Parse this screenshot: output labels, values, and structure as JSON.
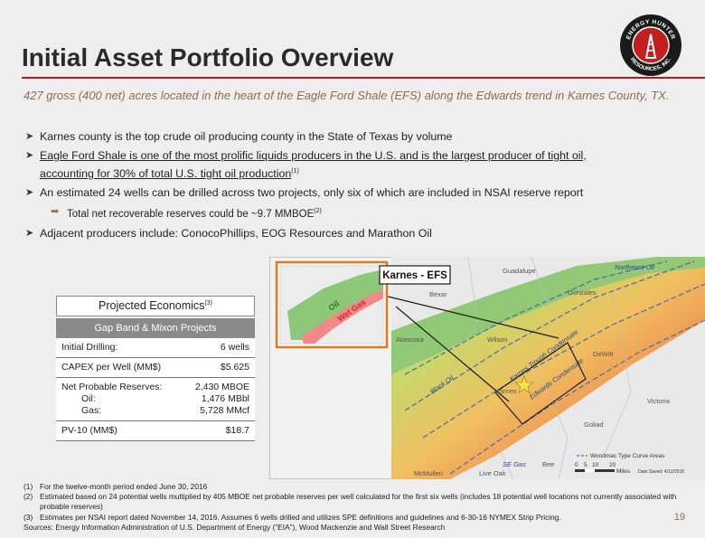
{
  "header": {
    "title": "Initial Asset Portfolio Overview",
    "logo_text_top": "ENERGY HUNTER",
    "logo_text_bottom": "RESOURCES, INC."
  },
  "subtitle": "427 gross (400 net) acres located in the heart of the Eagle Ford Shale (EFS) along the Edwards trend in Karnes County, TX.",
  "bullets": {
    "b1_prefix": "Karnes county is the ",
    "b1_highlight": "top crude oil producing county in the State of Texas by volume",
    "b2_line1": "Eagle Ford Shale is one of the most prolific liquids producers in the U.S. and is the largest producer of tight oil,",
    "b2_line2": "accounting for 30% of total U.S. tight oil production",
    "b2_sup": "(1)",
    "b3": "An estimated 24 wells can be drilled across two projects, only six of which are included in NSAI reserve report",
    "b3_sub": "Total net recoverable reserves could be ~9.7 MMBOE",
    "b3_sub_sup": "(2)",
    "b4": "Adjacent producers include: ConocoPhillips, EOG Resources and Marathon Oil"
  },
  "economics": {
    "title": "Projected Economics",
    "title_sup": "(3)",
    "band": "Gap Band & Mixon Projects",
    "rows": [
      {
        "label": "Initial Drilling:",
        "value": "6 wells"
      },
      {
        "label": "CAPEX per Well (MM$)",
        "value": "$5.625"
      }
    ],
    "reserves": {
      "label": "Net Probable Reserves:",
      "value": "2,430 MBOE",
      "oil_label": "Oil:",
      "oil_value": "1,476 MBbl",
      "gas_label": "Gas:",
      "gas_value": "5,728 MMcf"
    },
    "pv10": {
      "label": "PV-10 (MM$)",
      "value": "$18.7"
    }
  },
  "map": {
    "callout": "Karnes - EFS",
    "labels": {
      "guadalupe": "Guadalupe",
      "gonzales": "Gonzales",
      "bexar": "Bexar",
      "atascosa": "Atascosa",
      "wilson": "Wilson",
      "karnes": "Karnes",
      "dewitt": "DeWitt",
      "victoria": "Victoria",
      "goliad": "Goliad",
      "bee": "Bee",
      "live_oak": "Live Oak",
      "mcmullen": "McMullen",
      "northeast_oil": "Northeast Oil",
      "black_oil": "Black Oil",
      "karnes_trough": "Karnes Trough Condensate",
      "edwards_condensate": "Edwards Condensate",
      "se_gas": "SE Gas",
      "legend": "Woodmac Type Curve Areas",
      "miles": "Miles",
      "scale_0": "0",
      "scale_5": "5",
      "scale_10": "10",
      "scale_20": "20",
      "date_saved": "Date Saved: 4/12/2016",
      "inset_oil": "Oil",
      "inset_gas": "Wet Gas"
    }
  },
  "footnotes": [
    {
      "n": "(1)",
      "text": "For the twelve-month period ended June 30, 2016"
    },
    {
      "n": "(2)",
      "text": "Estimated based on 24 potential wells multiplied by 405 MBOE net probable reserves per well calculated for the first six wells (includes 18 potential well locations not currently associated with probable reserves)"
    },
    {
      "n": "(3)",
      "text": "Estimates per NSAI report dated November 14, 2016. Assumes 6 wells drilled and utilizes SPE definitions and guidelines and 6-30-16 NYMEX Strip Pricing."
    }
  ],
  "sources": "Sources: Energy Information Administration of U.S. Department of Energy (“EIA”), Wood Mackenzie and Wall Street Research",
  "page_number": "19",
  "colors": {
    "accent": "#b31b1b",
    "subtitle": "#8d6e4e"
  }
}
